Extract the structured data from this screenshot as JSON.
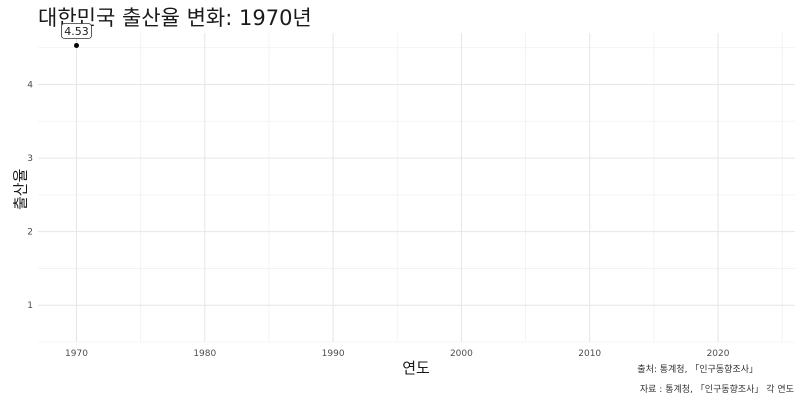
{
  "chart_data": {
    "type": "scatter",
    "title": "대한민국 출산율 변화: 1970년",
    "xlabel": "연도",
    "ylabel": "출산율",
    "xlim": [
      1967,
      2026
    ],
    "ylim": [
      0.5,
      4.7
    ],
    "x_ticks": [
      1970,
      1980,
      1990,
      2000,
      2010,
      2020
    ],
    "y_ticks": [
      1,
      2,
      3,
      4
    ],
    "grid": true,
    "points": [
      {
        "x": 1970,
        "y": 4.53,
        "label": "4.53"
      }
    ],
    "captions": [
      "출처: 통계청, 「인구동향조사」",
      "자료 : 통계청, 「인구동향조사」 각 연도"
    ]
  }
}
